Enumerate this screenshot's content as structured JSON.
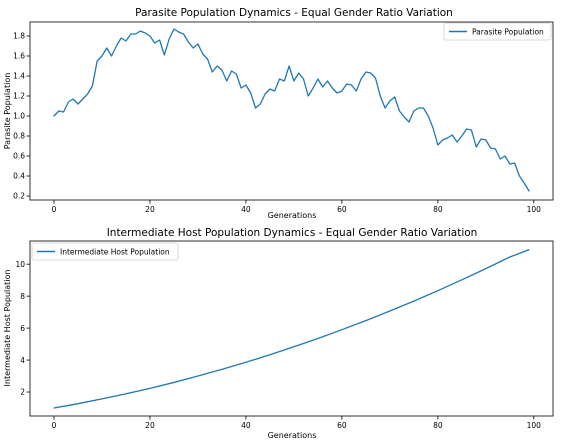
{
  "chart_data": [
    {
      "type": "line",
      "title": "Parasite Population Dynamics - Equal Gender Ratio Variation",
      "xlabel": "Generations",
      "ylabel": "Parasite Population",
      "xlim": [
        -5,
        104
      ],
      "ylim": [
        0.16,
        1.94
      ],
      "xticks": [
        0,
        20,
        40,
        60,
        80,
        100
      ],
      "yticks": [
        0.2,
        0.4,
        0.6,
        0.8,
        1.0,
        1.2,
        1.4,
        1.6,
        1.8
      ],
      "ytick_labels": [
        "0.2",
        "0.4",
        "0.6",
        "0.8",
        "1.0",
        "1.2",
        "1.4",
        "1.6",
        "1.8"
      ],
      "legend": "top-right",
      "grid": false,
      "series": [
        {
          "name": "Parasite Population",
          "color": "#1f77b4",
          "x": [
            0,
            1,
            2,
            3,
            4,
            5,
            6,
            7,
            8,
            9,
            10,
            11,
            12,
            13,
            14,
            15,
            16,
            17,
            18,
            19,
            20,
            21,
            22,
            23,
            24,
            25,
            26,
            27,
            28,
            29,
            30,
            31,
            32,
            33,
            34,
            35,
            36,
            37,
            38,
            39,
            40,
            41,
            42,
            43,
            44,
            45,
            46,
            47,
            48,
            49,
            50,
            51,
            52,
            53,
            54,
            55,
            56,
            57,
            58,
            59,
            60,
            61,
            62,
            63,
            64,
            65,
            66,
            67,
            68,
            69,
            70,
            71,
            72,
            73,
            74,
            75,
            76,
            77,
            78,
            79,
            80,
            81,
            82,
            83,
            84,
            85,
            86,
            87,
            88,
            89,
            90,
            91,
            92,
            93,
            94,
            95,
            96,
            97,
            98,
            99
          ],
          "values": [
            1.0,
            1.05,
            1.04,
            1.14,
            1.17,
            1.12,
            1.17,
            1.22,
            1.3,
            1.55,
            1.6,
            1.68,
            1.6,
            1.7,
            1.78,
            1.75,
            1.82,
            1.82,
            1.85,
            1.83,
            1.8,
            1.73,
            1.76,
            1.61,
            1.77,
            1.87,
            1.84,
            1.82,
            1.74,
            1.68,
            1.72,
            1.62,
            1.57,
            1.44,
            1.5,
            1.46,
            1.35,
            1.45,
            1.42,
            1.28,
            1.31,
            1.23,
            1.08,
            1.12,
            1.22,
            1.27,
            1.25,
            1.37,
            1.35,
            1.5,
            1.35,
            1.43,
            1.37,
            1.2,
            1.28,
            1.37,
            1.29,
            1.35,
            1.28,
            1.23,
            1.25,
            1.32,
            1.31,
            1.25,
            1.37,
            1.44,
            1.43,
            1.38,
            1.2,
            1.08,
            1.15,
            1.19,
            1.05,
            0.99,
            0.94,
            1.05,
            1.08,
            1.08,
            1.0,
            0.88,
            0.71,
            0.76,
            0.78,
            0.81,
            0.74,
            0.8,
            0.87,
            0.86,
            0.69,
            0.77,
            0.76,
            0.68,
            0.67,
            0.57,
            0.6,
            0.52,
            0.53,
            0.4,
            0.33,
            0.25
          ]
        }
      ]
    },
    {
      "type": "line",
      "title": "Intermediate Host Population Dynamics - Equal Gender Ratio Variation",
      "xlabel": "Generations",
      "ylabel": "Intermediate Host Population",
      "xlim": [
        -5,
        104
      ],
      "ylim": [
        0.5,
        11.45
      ],
      "xticks": [
        0,
        20,
        40,
        60,
        80,
        100
      ],
      "yticks": [
        2,
        4,
        6,
        8,
        10
      ],
      "ytick_labels": [
        "2",
        "4",
        "6",
        "8",
        "10"
      ],
      "legend": "top-left",
      "grid": false,
      "series": [
        {
          "name": "Intermediate Host Population",
          "color": "#1f77b4",
          "x": [
            0,
            5,
            10,
            15,
            20,
            25,
            30,
            35,
            40,
            45,
            50,
            55,
            60,
            65,
            70,
            75,
            80,
            85,
            90,
            95,
            99
          ],
          "values": [
            1.0,
            1.27,
            1.57,
            1.89,
            2.23,
            2.6,
            3.0,
            3.42,
            3.86,
            4.33,
            4.83,
            5.35,
            5.9,
            6.47,
            7.07,
            7.69,
            8.34,
            9.02,
            9.72,
            10.45,
            10.9
          ]
        }
      ]
    }
  ]
}
